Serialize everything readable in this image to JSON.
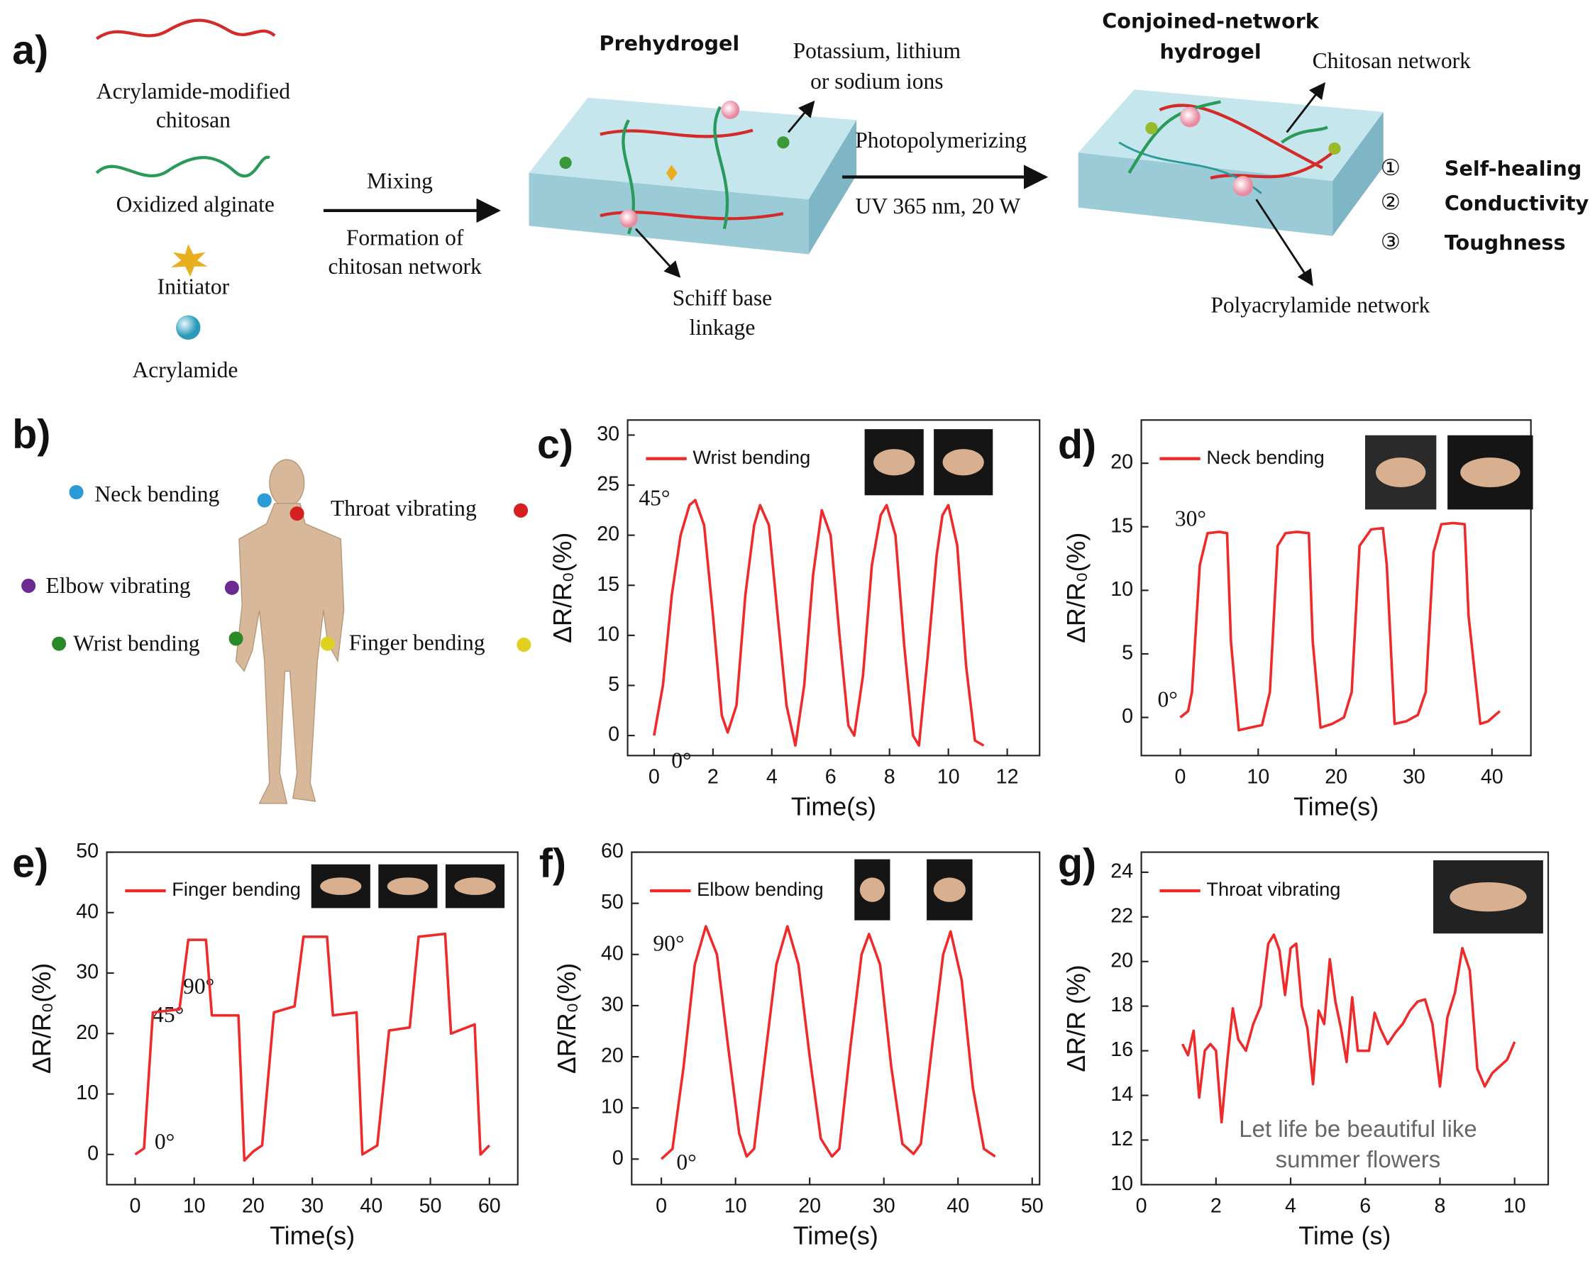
{
  "scheme": {
    "panel": "a)",
    "components": [
      [
        "Acrylamide-modified",
        "chitosan"
      ],
      [
        "Oxidized alginate"
      ],
      [
        "Initiator"
      ],
      [
        "Acrylamide"
      ]
    ],
    "step1": {
      "top": "Mixing",
      "bottom": [
        "Formation of",
        "chitosan network"
      ]
    },
    "prehydrogel": {
      "title": "Prehydrogel",
      "ions": [
        "Potassium, lithium",
        "or sodium ions"
      ],
      "linkage": [
        "Schiff base",
        "linkage"
      ]
    },
    "step2": {
      "top": "Photopolymerizing",
      "bottom": "UV 365 nm, 20 W"
    },
    "product": {
      "title": [
        "Conjoined-network",
        "hydrogel"
      ],
      "chitosan": "Chitosan network",
      "polyacrylamide": "Polyacrylamide network"
    },
    "properties": [
      {
        "marker": "①",
        "label": "Self-healing"
      },
      {
        "marker": "②",
        "label": "Conductivity"
      },
      {
        "marker": "③",
        "label": "Toughness"
      }
    ]
  },
  "body": {
    "panel": "b)",
    "sites": [
      {
        "label": "Neck bending",
        "color": "#2a9bd6"
      },
      {
        "label": "Throat vibrating",
        "color": "#d42020"
      },
      {
        "label": "Elbow vibrating",
        "color": "#6a2a90"
      },
      {
        "label": "Wrist bending",
        "color": "#2a8a2a"
      },
      {
        "label": "Finger bending",
        "color": "#e0d020"
      }
    ]
  },
  "chart_data": [
    {
      "type": "line",
      "panel": "c)",
      "xlabel": "Time(s)",
      "ylabel": "ΔR/R₀(%)",
      "legend": "upper left",
      "xlim": [
        -0.9,
        13.1
      ],
      "xticks": [
        0,
        2,
        4,
        6,
        8,
        10,
        12
      ],
      "ylim": [
        -2,
        31.5
      ],
      "yticks": [
        0,
        5,
        10,
        15,
        20,
        25,
        30
      ],
      "annotations": [
        "45°",
        "0°"
      ],
      "x": [
        0,
        0.3,
        0.6,
        0.9,
        1.2,
        1.4,
        1.7,
        2.0,
        2.3,
        2.5,
        2.8,
        3.1,
        3.4,
        3.6,
        3.9,
        4.2,
        4.5,
        4.8,
        5.1,
        5.4,
        5.7,
        6.0,
        6.3,
        6.6,
        6.8,
        7.1,
        7.4,
        7.7,
        7.9,
        8.2,
        8.5,
        8.8,
        9.0,
        9.3,
        9.6,
        9.8,
        10.0,
        10.3,
        10.6,
        10.9,
        11.2
      ],
      "series": [
        {
          "name": "Wrist bending",
          "color": "#ee2a2a",
          "values": [
            0,
            5,
            14,
            20,
            23,
            23.5,
            21,
            12,
            2,
            0.3,
            3,
            14,
            21,
            23,
            21,
            12,
            3,
            -1,
            5,
            16,
            22.5,
            20,
            10,
            1,
            0,
            6,
            17,
            22,
            23,
            20,
            9,
            0,
            -1,
            8,
            18,
            22,
            23,
            19,
            7,
            -0.5,
            -1
          ]
        }
      ]
    },
    {
      "type": "line",
      "panel": "d)",
      "xlabel": "Time(s)",
      "ylabel": "ΔR/R₀(%)",
      "legend": "upper left",
      "xlim": [
        -5,
        45
      ],
      "xticks": [
        0,
        10,
        20,
        30,
        40
      ],
      "ylim": [
        -3,
        23.4
      ],
      "yticks": [
        0,
        5,
        10,
        15,
        20
      ],
      "annotations": [
        "30°",
        "0°"
      ],
      "x": [
        0,
        1,
        1.5,
        2.5,
        3.5,
        5,
        6,
        6.5,
        7.5,
        9,
        10.5,
        11.5,
        12.5,
        13.5,
        15,
        16.5,
        17,
        18,
        19.5,
        21,
        22,
        23,
        24.5,
        26,
        26.5,
        27.5,
        29,
        30.5,
        31.5,
        32.5,
        33.5,
        35,
        36.5,
        37,
        38.5,
        39.5,
        41
      ],
      "series": [
        {
          "name": "Neck bending",
          "color": "#ee2a2a",
          "values": [
            0,
            0.5,
            2,
            12,
            14.5,
            14.6,
            14.5,
            6,
            -1,
            -0.8,
            -0.6,
            2,
            13.5,
            14.5,
            14.6,
            14.5,
            6,
            -0.8,
            -0.5,
            0,
            2,
            13.5,
            14.8,
            14.9,
            12,
            -0.5,
            -0.3,
            0.2,
            2,
            13,
            15.2,
            15.3,
            15.2,
            8,
            -0.5,
            -0.3,
            0.5
          ]
        }
      ]
    },
    {
      "type": "line",
      "panel": "e)",
      "xlabel": "Time(s)",
      "ylabel": "ΔR/R₀(%)",
      "legend": "upper left",
      "xlim": [
        -4.8,
        64.8
      ],
      "xticks": [
        0,
        10,
        20,
        30,
        40,
        50,
        60
      ],
      "ylim": [
        -5,
        50
      ],
      "yticks": [
        0,
        10,
        20,
        30,
        40,
        50
      ],
      "annotations": [
        "90°",
        "45°",
        "0°"
      ],
      "x": [
        0,
        1.5,
        3,
        7.5,
        9,
        12,
        13,
        17.5,
        18.5,
        20,
        21.5,
        23.5,
        27,
        28.5,
        32.5,
        33.5,
        37.5,
        38.5,
        41,
        43,
        46.5,
        48,
        52.5,
        53.5,
        57.5,
        58.5,
        60
      ],
      "series": [
        {
          "name": "Finger bending",
          "color": "#ee2a2a",
          "values": [
            0,
            1,
            23.5,
            24,
            35.5,
            35.5,
            23,
            23,
            -1,
            0.5,
            1.5,
            23.5,
            24.5,
            36,
            36,
            23,
            23.5,
            0,
            1.5,
            20.5,
            21,
            36,
            36.5,
            20,
            21.5,
            0,
            1.5
          ]
        }
      ]
    },
    {
      "type": "line",
      "panel": "f)",
      "xlabel": "Time(s)",
      "ylabel": "ΔR/R₀(%)",
      "legend": "upper left",
      "xlim": [
        -4,
        51
      ],
      "xticks": [
        0,
        10,
        20,
        30,
        40,
        50
      ],
      "ylim": [
        -5,
        60
      ],
      "yticks": [
        0,
        10,
        20,
        30,
        40,
        50,
        60
      ],
      "annotations": [
        "90°",
        "0°"
      ],
      "x": [
        0,
        1.5,
        3,
        4.5,
        6,
        7.5,
        9,
        10.5,
        11.5,
        12.5,
        14,
        15.5,
        17,
        18.5,
        20,
        21.5,
        23,
        24,
        25.5,
        27,
        28,
        29.5,
        31,
        32.5,
        34,
        35,
        36.5,
        38,
        39,
        40.5,
        42,
        43.5,
        45
      ],
      "series": [
        {
          "name": "Elbow bending",
          "color": "#ee2a2a",
          "values": [
            0,
            2,
            18,
            38,
            45.5,
            40,
            22,
            5,
            0.5,
            2,
            20,
            38,
            45.5,
            38,
            20,
            4,
            0.5,
            2,
            22,
            40,
            44,
            38,
            18,
            3,
            1,
            3,
            22,
            40,
            44.5,
            35,
            14,
            2,
            0.5
          ]
        }
      ]
    },
    {
      "type": "line",
      "panel": "g)",
      "xlabel": "Time (s)",
      "ylabel": "ΔR/R (%)",
      "legend": "upper left",
      "xlim": [
        0,
        10.9
      ],
      "xticks": [
        0,
        2,
        4,
        6,
        8,
        10
      ],
      "ylim": [
        10,
        24.9
      ],
      "yticks": [
        10,
        12,
        14,
        16,
        18,
        20,
        22,
        24
      ],
      "annotations": [
        "Let life be beautiful like",
        "summer flowers"
      ],
      "x": [
        1.1,
        1.25,
        1.4,
        1.55,
        1.7,
        1.85,
        2.0,
        2.15,
        2.3,
        2.45,
        2.6,
        2.8,
        3.0,
        3.2,
        3.4,
        3.55,
        3.7,
        3.85,
        4.0,
        4.15,
        4.3,
        4.45,
        4.6,
        4.75,
        4.9,
        5.05,
        5.2,
        5.35,
        5.5,
        5.65,
        5.8,
        5.95,
        6.1,
        6.25,
        6.4,
        6.6,
        6.8,
        7.0,
        7.2,
        7.4,
        7.6,
        7.8,
        8.0,
        8.2,
        8.4,
        8.6,
        8.8,
        9.0,
        9.2,
        9.4,
        9.6,
        9.8,
        10.0
      ],
      "series": [
        {
          "name": "Throat vibrating",
          "color": "#ee2a2a",
          "values": [
            16.3,
            15.8,
            16.9,
            13.9,
            16,
            16.3,
            16,
            12.8,
            15.5,
            17.9,
            16.5,
            16,
            17.2,
            18,
            20.8,
            21.2,
            20.5,
            18.5,
            20.6,
            20.8,
            18,
            17,
            14.5,
            17.8,
            17.2,
            20.1,
            18.2,
            17,
            15.5,
            18.4,
            16,
            16,
            16,
            17.7,
            17,
            16.3,
            16.8,
            17.2,
            17.8,
            18.2,
            18.3,
            17.2,
            14.4,
            17.5,
            18.6,
            20.6,
            19.6,
            15.2,
            14.4,
            15,
            15.3,
            15.6,
            16.4
          ]
        }
      ]
    }
  ]
}
